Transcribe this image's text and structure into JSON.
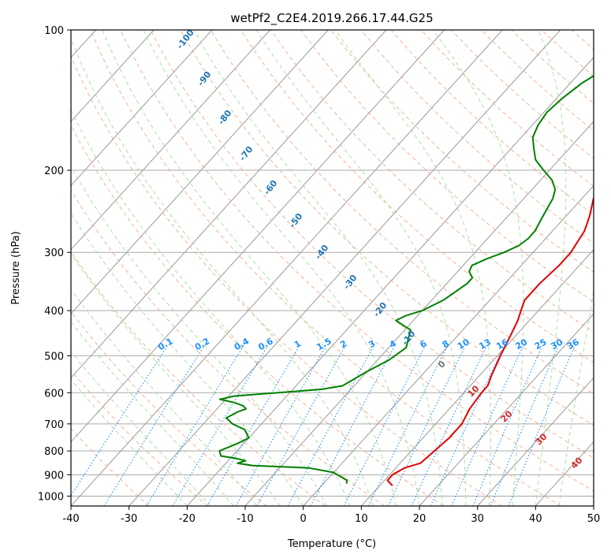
{
  "chart_data": {
    "type": "line",
    "title": "wetPf2_C2E4.2019.266.17.44.G25",
    "xlabel": "Temperature (°C)",
    "ylabel": "Pressure (hPa)",
    "xlim": [
      -40,
      50
    ],
    "ylim": [
      1050,
      100
    ],
    "y_scale": "log",
    "grid": true,
    "x_ticks": [
      "-40",
      "-30",
      "-20",
      "-10",
      "0",
      "10",
      "20",
      "30",
      "40",
      "50"
    ],
    "y_ticks": [
      "100",
      "200",
      "300",
      "400",
      "500",
      "600",
      "700",
      "800",
      "900",
      "1000"
    ],
    "series": [
      {
        "color": "#e00000",
        "points": [
          [
            12.2,
            950
          ],
          [
            10.5,
            925
          ],
          [
            10.5,
            900
          ],
          [
            11.5,
            870
          ],
          [
            13.5,
            850
          ],
          [
            14,
            800
          ],
          [
            14.5,
            750
          ],
          [
            14.5,
            700
          ],
          [
            13.5,
            650
          ],
          [
            13,
            600
          ],
          [
            13,
            580
          ],
          [
            12,
            550
          ],
          [
            10.5,
            500
          ],
          [
            9,
            450
          ],
          [
            8,
            420
          ],
          [
            7,
            400
          ],
          [
            6,
            380
          ],
          [
            6,
            350
          ],
          [
            6.5,
            320
          ],
          [
            6.5,
            300
          ],
          [
            5.5,
            270
          ],
          [
            4,
            250
          ],
          [
            2,
            230
          ],
          [
            0,
            210
          ],
          [
            -1.5,
            190
          ],
          [
            -2.5,
            180
          ],
          [
            -3.5,
            170
          ],
          [
            -3.5,
            160
          ],
          [
            -3,
            150
          ],
          [
            -2.5,
            140
          ],
          [
            -2.5,
            130
          ],
          [
            -2,
            125
          ],
          [
            -0.5,
            115
          ],
          [
            1,
            107
          ],
          [
            2,
            100
          ]
        ]
      },
      {
        "color": "#008000",
        "points": [
          [
            4,
            940
          ],
          [
            3.5,
            925
          ],
          [
            0,
            890
          ],
          [
            -5,
            870
          ],
          [
            -15,
            860
          ],
          [
            -18,
            850
          ],
          [
            -17,
            840
          ],
          [
            -19,
            830
          ],
          [
            -22,
            820
          ],
          [
            -23,
            800
          ],
          [
            -21,
            770
          ],
          [
            -20,
            750
          ],
          [
            -22,
            720
          ],
          [
            -25,
            700
          ],
          [
            -27,
            680
          ],
          [
            -26,
            660
          ],
          [
            -25,
            650
          ],
          [
            -26,
            640
          ],
          [
            -28,
            630
          ],
          [
            -31,
            620
          ],
          [
            -29,
            610
          ],
          [
            -22,
            600
          ],
          [
            -15,
            590
          ],
          [
            -12,
            580
          ],
          [
            -11,
            560
          ],
          [
            -10,
            540
          ],
          [
            -8,
            510
          ],
          [
            -7,
            480
          ],
          [
            -7.5,
            470
          ],
          [
            -9,
            440
          ],
          [
            -11,
            430
          ],
          [
            -13,
            420
          ],
          [
            -12,
            410
          ],
          [
            -10,
            400
          ],
          [
            -8,
            380
          ],
          [
            -7,
            360
          ],
          [
            -6.5,
            350
          ],
          [
            -6.5,
            340
          ],
          [
            -8,
            330
          ],
          [
            -8.5,
            320
          ],
          [
            -7,
            310
          ],
          [
            -5,
            300
          ],
          [
            -3.5,
            290
          ],
          [
            -3,
            280
          ],
          [
            -3,
            270
          ],
          [
            -3.5,
            260
          ],
          [
            -4,
            250
          ],
          [
            -4.5,
            240
          ],
          [
            -5,
            230
          ],
          [
            -6,
            220
          ],
          [
            -8,
            210
          ],
          [
            -11,
            200
          ],
          [
            -14,
            190
          ],
          [
            -16,
            180
          ],
          [
            -18,
            170
          ],
          [
            -19,
            160
          ],
          [
            -19.5,
            150
          ],
          [
            -19,
            140
          ],
          [
            -18,
            130
          ],
          [
            -16,
            120
          ],
          [
            -13,
            110
          ],
          [
            -11,
            105
          ],
          [
            -10,
            100
          ]
        ]
      }
    ],
    "dry_adiabat_labels": [
      "-100",
      "-90",
      "-80",
      "-70",
      "-60",
      "-50",
      "-40",
      "-30",
      "-20",
      "-10",
      "0",
      "10",
      "20",
      "30",
      "40"
    ],
    "mixing_ratio_labels": [
      "0.1",
      "0.2",
      "0.4",
      "0.6",
      "1",
      "1.5",
      "2",
      "3",
      "4",
      "6",
      "8",
      "10",
      "13",
      "16",
      "20",
      "25",
      "30",
      "36"
    ],
    "colors": {
      "temperature": "#e00000",
      "dewpoint": "#008000",
      "dry_adiabat_label": "#1f77b4",
      "mixing_ratio": "#1e90ff",
      "moist_label": "#d62728",
      "skew_line": "#9a9a9a",
      "dry_adiabat": "#f4a582",
      "moist_adiabat": "#a6d9a0"
    }
  }
}
